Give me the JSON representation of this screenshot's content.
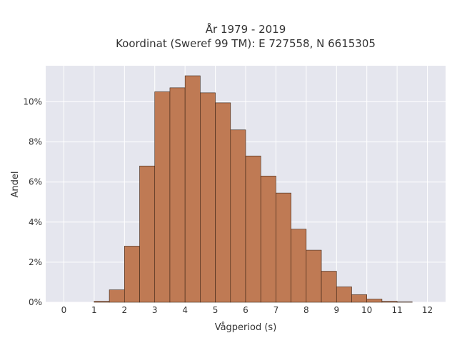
{
  "chart_data": {
    "type": "bar",
    "title_line1": "År 1979 - 2019",
    "title_line2": "Koordinat (Sweref 99 TM): E 727558, N 6615305",
    "xlabel": "Vågperiod (s)",
    "ylabel": "Andel",
    "xlim": [
      -0.6,
      12.6
    ],
    "ylim": [
      0,
      11.8
    ],
    "grid": true,
    "bin_width": 0.5,
    "x_ticks": [
      0,
      1,
      2,
      3,
      4,
      5,
      6,
      7,
      8,
      9,
      10,
      11,
      12
    ],
    "x_tick_labels": [
      "0",
      "1",
      "2",
      "3",
      "4",
      "5",
      "6",
      "7",
      "8",
      "9",
      "10",
      "11",
      "12"
    ],
    "y_ticks": [
      0,
      2,
      4,
      6,
      8,
      10
    ],
    "y_tick_labels": [
      "0%",
      "2%",
      "4%",
      "6%",
      "8%",
      "10%"
    ],
    "bins": [
      {
        "start": 1.0,
        "value": 0.05
      },
      {
        "start": 1.5,
        "value": 0.62
      },
      {
        "start": 2.0,
        "value": 2.8
      },
      {
        "start": 2.5,
        "value": 6.8
      },
      {
        "start": 3.0,
        "value": 10.5
      },
      {
        "start": 3.5,
        "value": 10.7
      },
      {
        "start": 4.0,
        "value": 11.3
      },
      {
        "start": 4.5,
        "value": 10.45
      },
      {
        "start": 5.0,
        "value": 9.95
      },
      {
        "start": 5.5,
        "value": 8.6
      },
      {
        "start": 6.0,
        "value": 7.3
      },
      {
        "start": 6.5,
        "value": 6.3
      },
      {
        "start": 7.0,
        "value": 5.45
      },
      {
        "start": 7.5,
        "value": 3.65
      },
      {
        "start": 8.0,
        "value": 2.6
      },
      {
        "start": 8.5,
        "value": 1.55
      },
      {
        "start": 9.0,
        "value": 0.77
      },
      {
        "start": 9.5,
        "value": 0.38
      },
      {
        "start": 10.0,
        "value": 0.16
      },
      {
        "start": 10.5,
        "value": 0.05
      },
      {
        "start": 11.0,
        "value": 0.02
      }
    ],
    "colors": {
      "bar_fill": "#bf7a54",
      "bar_stroke": "#3d2516",
      "plot_bg": "#e5e6ee",
      "grid": "#ffffff"
    }
  }
}
